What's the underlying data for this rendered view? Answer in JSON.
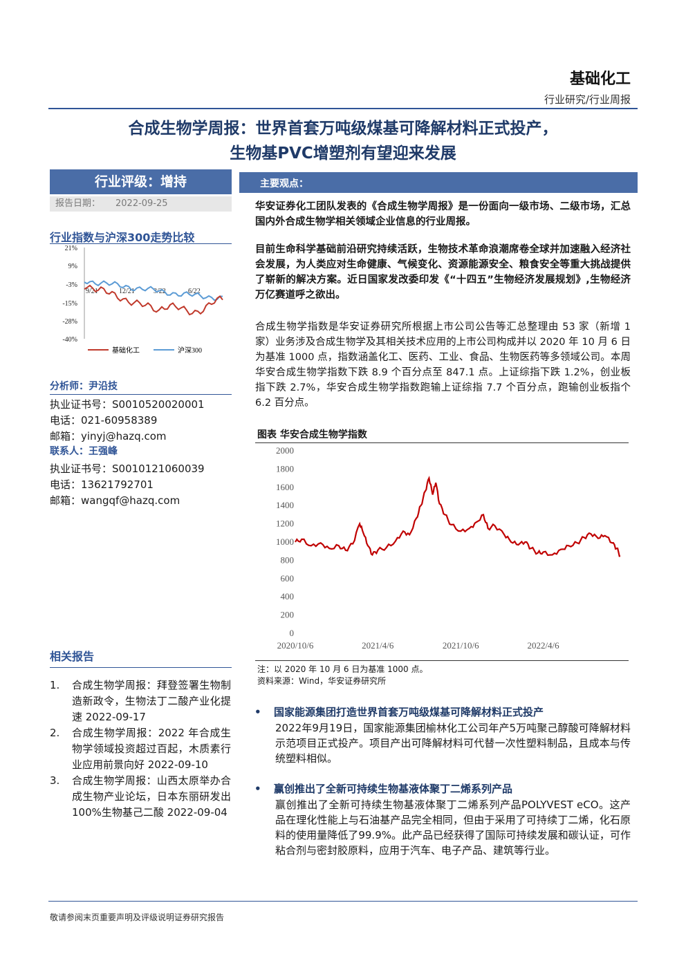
{
  "header": {
    "industry": "基础化工",
    "report_type": "行业研究/行业周报"
  },
  "title": {
    "line1": "合成生物学周报：世界首套万吨级煤基可降解材料正式投产，",
    "line2": "生物基PVC增塑剂有望迎来发展"
  },
  "rating": {
    "label": "行业评级：增持",
    "date_label": "报告日期：",
    "date_value": "2022-09-25"
  },
  "index_compare": {
    "title": "行业指数与沪深300走势比较",
    "yticks": [
      "21%",
      "9%",
      "-3%",
      "-15%",
      "-28%",
      "-40%"
    ],
    "xticks": [
      "9/21",
      "12/21",
      "3/22",
      "6/22"
    ],
    "legend": [
      "基础化工",
      "沪深300"
    ],
    "colors": {
      "industry": "#c0392b",
      "hs300": "#5b9bd5"
    }
  },
  "analyst": {
    "title": "分析师：尹沿技",
    "cert": "执业证书号：S0010520020001",
    "phone": "电话：021-60958389",
    "email": "邮箱：yinyj@hazq.com"
  },
  "contact": {
    "title": "联系人：王强峰",
    "cert": "执业证书号：S0010121060039",
    "phone": "电话：13621792701",
    "email": "邮箱：wangqf@hazq.com"
  },
  "related": {
    "title": "相关报告",
    "items": [
      {
        "num": "1.",
        "text": "合成生物学周报：拜登签署生物制造新政令，生物法丁二酸产业化提速 2022-09-17"
      },
      {
        "num": "2.",
        "text": "合成生物学周报：2022 年合成生物学领域投资超过百起，木质素行业应用前景向好 2022-09-10"
      },
      {
        "num": "3.",
        "text": "合成生物学周报：山西太原举办合成生物产业论坛，日本东丽研发出 100%生物基己二酸 2022-09-04"
      }
    ]
  },
  "main_view": {
    "label": "主要观点：",
    "p1": "华安证券化工团队发表的《合成生物学周报》是一份面向一级市场、二级市场，汇总国内外合成生物学相关领域企业信息的行业周报。",
    "p2": "目前生命科学基础前沿研究持续活跃，生物技术革命浪潮席卷全球并加速融入经济社会发展，为人类应对生命健康、气候变化、资源能源安全、粮食安全等重大挑战提供了崭新的解决方案。近日国家发改委印发《“十四五”生物经济发展规划》,生物经济万亿赛道呼之欲出。",
    "p3": "合成生物学指数是华安证券研究所根据上市公司公告等汇总整理由 53 家（新增 1 家）业务涉及合成生物学及其相关技术应用的上市公司构成并以 2020 年 10 月 6 日为基准 1000 点，指数涵盖化工、医药、工业、食品、生物医药等多领域公司。本周华安合成生物学指数下跌 8.9 个百分点至 847.1 点。上证综指下跌 1.2%，创业板指下跌 2.7%，华安合成生物学指数跑输上证综指 7.7 个百分点，跑输创业板指个 6.2 百分点。"
  },
  "chart_data": {
    "type": "line",
    "title": "图表 华安合成生物学指数",
    "yticks": [
      0,
      200,
      400,
      600,
      800,
      1000,
      1200,
      1400,
      1600,
      1800,
      2000
    ],
    "ylim": [
      0,
      2000
    ],
    "xticks": [
      "2020/10/6",
      "2021/4/6",
      "2021/10/6",
      "2022/4/6"
    ],
    "series": [
      {
        "color": "#c00000",
        "points": [
          [
            "2020-10-06",
            1000
          ],
          [
            "2020-10-20",
            1030
          ],
          [
            "2020-11-10",
            960
          ],
          [
            "2020-12-01",
            990
          ],
          [
            "2020-12-20",
            930
          ],
          [
            "2021-01-10",
            960
          ],
          [
            "2021-01-25",
            910
          ],
          [
            "2021-02-10",
            980
          ],
          [
            "2021-02-25",
            1200
          ],
          [
            "2021-03-05",
            1100
          ],
          [
            "2021-03-15",
            960
          ],
          [
            "2021-03-25",
            860
          ],
          [
            "2021-04-06",
            910
          ],
          [
            "2021-04-25",
            940
          ],
          [
            "2021-05-15",
            1010
          ],
          [
            "2021-06-01",
            1120
          ],
          [
            "2021-06-15",
            1080
          ],
          [
            "2021-06-30",
            1260
          ],
          [
            "2021-07-10",
            1400
          ],
          [
            "2021-07-20",
            1560
          ],
          [
            "2021-07-28",
            1700
          ],
          [
            "2021-08-05",
            1520
          ],
          [
            "2021-08-12",
            1650
          ],
          [
            "2021-08-20",
            1420
          ],
          [
            "2021-09-01",
            1300
          ],
          [
            "2021-09-15",
            1190
          ],
          [
            "2021-10-06",
            1120
          ],
          [
            "2021-10-25",
            1150
          ],
          [
            "2021-11-10",
            1220
          ],
          [
            "2021-11-25",
            1300
          ],
          [
            "2021-12-05",
            1150
          ],
          [
            "2021-12-20",
            1180
          ],
          [
            "2022-01-10",
            1080
          ],
          [
            "2022-01-25",
            1000
          ],
          [
            "2022-02-10",
            970
          ],
          [
            "2022-02-25",
            1000
          ],
          [
            "2022-03-10",
            930
          ],
          [
            "2022-03-25",
            880
          ],
          [
            "2022-04-06",
            890
          ],
          [
            "2022-04-26",
            860
          ],
          [
            "2022-05-15",
            920
          ],
          [
            "2022-06-01",
            960
          ],
          [
            "2022-06-20",
            990
          ],
          [
            "2022-07-05",
            1050
          ],
          [
            "2022-07-20",
            1090
          ],
          [
            "2022-08-05",
            1040
          ],
          [
            "2022-08-20",
            1070
          ],
          [
            "2022-09-05",
            990
          ],
          [
            "2022-09-15",
            930
          ],
          [
            "2022-09-23",
            847
          ]
        ]
      }
    ],
    "note": "注：以 2020 年 10 月 6 日为基准 1000 点。",
    "source": "资料来源：Wind，华安证券研究所"
  },
  "news": [
    {
      "title": "国家能源集团打造世界首套万吨级煤基可降解材料正式投产",
      "body": "2022年9月19日，国家能源集团榆林化工公司年产5万吨聚己醇酸可降解材料示范项目正式投产。项目产出可降解材料可代替一次性塑料制品，且成本与传统塑料相似。"
    },
    {
      "title": "赢创推出了全新可持续生物基液体聚丁二烯系列产品",
      "body": "赢创推出了全新可持续生物基液体聚丁二烯系列产品POLYVEST eCO。这产品在理化性能上与石油基产品完全相同，但由于采用了可持续丁二烯，化石原料的使用量降低了99.9%。此产品已经获得了国际可持续发展和碳认证，可作粘合剂与密封胶原料，应用于汽车、电子产品、建筑等行业。"
    }
  ],
  "footer": "敬请参阅末页重要声明及评级说明证券研究报告"
}
